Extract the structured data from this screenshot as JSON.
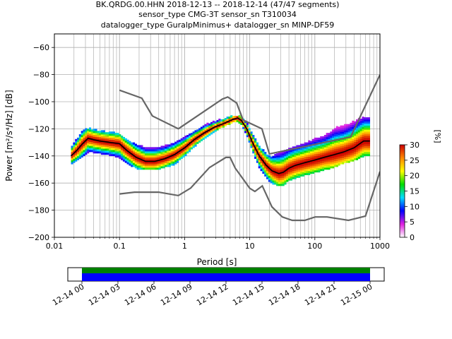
{
  "title_lines": [
    "BK.QRDG.00.HHN   2018-12-13 -- 2018-12-14  (47/47 segments)",
    "sensor_type CMG-3T sensor_sn T310034",
    "datalogger_type GuralpMinimus+ datalogger_sn MINP-DF59"
  ],
  "chart_data": {
    "type": "heatmap",
    "title": "BK.QRDG.00.HHN   2018-12-13 -- 2018-12-14  (47/47 segments)",
    "xlabel": "Period [s]",
    "ylabel": "Power [m²/s⁴/Hz] [dB]",
    "x_scale": "log",
    "xlim": [
      0.01,
      1000
    ],
    "ylim": [
      -200,
      -50
    ],
    "x_ticks": [
      {
        "value": 0.01,
        "label": "0.01"
      },
      {
        "value": 0.1,
        "label": "0.1"
      },
      {
        "value": 1,
        "label": "1"
      },
      {
        "value": 10,
        "label": "10"
      },
      {
        "value": 100,
        "label": "100"
      },
      {
        "value": 1000,
        "label": "1000"
      }
    ],
    "y_ticks": [
      -60,
      -80,
      -100,
      -120,
      -140,
      -160,
      -180,
      -200
    ],
    "grid": true,
    "colorbar": {
      "label": "[%]",
      "min": 0,
      "max": 30,
      "ticks": [
        0,
        5,
        10,
        15,
        20,
        25,
        30
      ],
      "colors": [
        "#ffffff",
        "#e020e0",
        "#0000ff",
        "#00ddff",
        "#00dd00",
        "#ffff00",
        "#ff8800",
        "#cc0000"
      ]
    },
    "noise_models": [
      {
        "name": "NHNM",
        "color": "#666666",
        "x": [
          0.1,
          0.22,
          0.32,
          0.8,
          3.8,
          4.6,
          6.3,
          7.9,
          15.4,
          20,
          354.8,
          10000
        ],
        "y": [
          -91.5,
          -97.4,
          -110.5,
          -120.0,
          -98.0,
          -96.5,
          -101.0,
          -113.5,
          -120.0,
          -138.5,
          -126.0,
          -80.1
        ]
      },
      {
        "name": "NLNM",
        "color": "#666666",
        "x": [
          0.1,
          0.17,
          0.4,
          0.8,
          1.24,
          2.4,
          4.3,
          5.0,
          6.0,
          10.0,
          12.0,
          15.6,
          21.9,
          31.6,
          45.0,
          70.0,
          101.0,
          154.0,
          328.0,
          600.0,
          10000
        ],
        "y": [
          -168.0,
          -166.7,
          -166.7,
          -169.2,
          -163.7,
          -148.6,
          -141.1,
          -141.1,
          -149.0,
          -163.8,
          -166.2,
          -162.1,
          -177.5,
          -185.0,
          -187.5,
          -187.5,
          -185.0,
          -185.0,
          -187.5,
          -184.4,
          -151.5
        ]
      }
    ],
    "mode_curve": {
      "color": "#000000",
      "x": [
        0.018,
        0.022,
        0.027,
        0.033,
        0.04,
        0.05,
        0.07,
        0.1,
        0.13,
        0.18,
        0.25,
        0.35,
        0.5,
        0.7,
        1.0,
        1.4,
        2.0,
        2.8,
        4.0,
        5.5,
        6.5,
        7.5,
        9.0,
        11.0,
        14.0,
        18.0,
        22.0,
        28.0,
        33.0,
        40.0,
        50.0,
        70.0,
        100.0,
        140.0,
        200.0,
        280.0,
        400.0,
        560.0,
        700.0
      ],
      "y": [
        -140,
        -136,
        -131,
        -127,
        -128,
        -129,
        -130,
        -131,
        -136,
        -141,
        -144,
        -144,
        -142,
        -139,
        -134,
        -128,
        -123,
        -119,
        -116,
        -113,
        -112,
        -114,
        -120,
        -130,
        -140,
        -147,
        -151,
        -153,
        -152,
        -149,
        -147,
        -145,
        -143,
        -141,
        -139,
        -137,
        -134,
        -129,
        -129
      ]
    },
    "probability_band": {
      "x": [
        0.018,
        0.022,
        0.027,
        0.033,
        0.04,
        0.05,
        0.07,
        0.1,
        0.13,
        0.18,
        0.25,
        0.35,
        0.5,
        0.7,
        1.0,
        1.4,
        2.0,
        2.8,
        4.0,
        5.5,
        6.5,
        7.5,
        9.0,
        11.0,
        14.0,
        18.0,
        22.0,
        28.0,
        33.0,
        40.0,
        50.0,
        70.0,
        100.0,
        140.0,
        200.0,
        280.0,
        400.0,
        560.0,
        700.0
      ],
      "upper": [
        -134,
        -128,
        -122,
        -120,
        -121,
        -122,
        -123,
        -124,
        -128,
        -132,
        -134,
        -134,
        -133,
        -131,
        -127,
        -122,
        -118,
        -115,
        -113,
        -111,
        -111,
        -112,
        -116,
        -124,
        -133,
        -139,
        -141,
        -138,
        -137,
        -135,
        -133,
        -131,
        -128,
        -126,
        -120,
        -118,
        -115,
        -112,
        -112
      ],
      "lower": [
        -146,
        -143,
        -140,
        -137,
        -137,
        -138,
        -139,
        -141,
        -145,
        -149,
        -150,
        -150,
        -148,
        -146,
        -140,
        -133,
        -127,
        -122,
        -118,
        -115,
        -114,
        -117,
        -124,
        -136,
        -148,
        -156,
        -160,
        -162,
        -161,
        -158,
        -156,
        -154,
        -152,
        -150,
        -148,
        -145,
        -143,
        -140,
        -140
      ]
    }
  },
  "time_axis": {
    "tick_labels": [
      "12-14 00",
      "12-14 03",
      "12-14 06",
      "12-14 09",
      "12-14 12",
      "12-14 15",
      "12-14 18",
      "12-14 21",
      "12-15 00"
    ],
    "bars": [
      {
        "name": "data coverage",
        "color": "#008000"
      },
      {
        "name": "gaps",
        "color": "#0000ff"
      }
    ]
  }
}
